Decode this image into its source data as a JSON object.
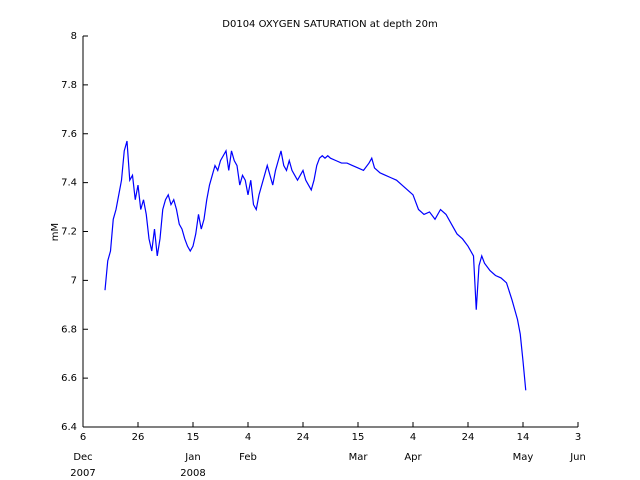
{
  "chart_data": {
    "type": "line",
    "title": "D0104 OXYGEN SATURATION at depth 20m",
    "ylabel": "mM",
    "color": "#0000ff",
    "x": [
      "2007-12-14",
      "2007-12-15",
      "2007-12-16",
      "2007-12-17",
      "2007-12-18",
      "2007-12-19",
      "2007-12-20",
      "2007-12-21",
      "2007-12-22",
      "2007-12-23",
      "2007-12-24",
      "2007-12-25",
      "2007-12-26",
      "2007-12-27",
      "2007-12-28",
      "2007-12-29",
      "2007-12-30",
      "2007-12-31",
      "2008-01-01",
      "2008-01-02",
      "2008-01-03",
      "2008-01-04",
      "2008-01-05",
      "2008-01-06",
      "2008-01-07",
      "2008-01-08",
      "2008-01-09",
      "2008-01-10",
      "2008-01-11",
      "2008-01-12",
      "2008-01-13",
      "2008-01-14",
      "2008-01-15",
      "2008-01-16",
      "2008-01-17",
      "2008-01-18",
      "2008-01-19",
      "2008-01-20",
      "2008-01-21",
      "2008-01-22",
      "2008-01-23",
      "2008-01-24",
      "2008-01-25",
      "2008-01-26",
      "2008-01-27",
      "2008-01-28",
      "2008-01-29",
      "2008-01-30",
      "2008-01-31",
      "2008-02-01",
      "2008-02-02",
      "2008-02-03",
      "2008-02-04",
      "2008-02-05",
      "2008-02-06",
      "2008-02-07",
      "2008-02-08",
      "2008-02-09",
      "2008-02-10",
      "2008-02-11",
      "2008-02-12",
      "2008-02-13",
      "2008-02-14",
      "2008-02-15",
      "2008-02-16",
      "2008-02-17",
      "2008-02-18",
      "2008-02-19",
      "2008-02-20",
      "2008-02-21",
      "2008-02-22",
      "2008-02-23",
      "2008-02-24",
      "2008-02-25",
      "2008-02-26",
      "2008-02-27",
      "2008-02-28",
      "2008-02-29",
      "2008-03-01",
      "2008-03-02",
      "2008-03-03",
      "2008-03-04",
      "2008-03-05",
      "2008-03-07",
      "2008-03-09",
      "2008-03-11",
      "2008-03-13",
      "2008-03-15",
      "2008-03-17",
      "2008-03-19",
      "2008-03-20",
      "2008-03-21",
      "2008-03-23",
      "2008-03-25",
      "2008-03-27",
      "2008-03-29",
      "2008-03-31",
      "2008-04-02",
      "2008-04-04",
      "2008-04-06",
      "2008-04-08",
      "2008-04-10",
      "2008-04-12",
      "2008-04-14",
      "2008-04-16",
      "2008-04-18",
      "2008-04-20",
      "2008-04-22",
      "2008-04-24",
      "2008-04-26",
      "2008-04-27",
      "2008-04-28",
      "2008-04-29",
      "2008-04-30",
      "2008-05-02",
      "2008-05-04",
      "2008-05-06",
      "2008-05-08",
      "2008-05-10",
      "2008-05-12",
      "2008-05-13",
      "2008-05-14",
      "2008-05-15"
    ],
    "values": [
      6.96,
      7.08,
      7.12,
      7.25,
      7.29,
      7.35,
      7.41,
      7.53,
      7.57,
      7.41,
      7.43,
      7.33,
      7.39,
      7.29,
      7.33,
      7.27,
      7.17,
      7.12,
      7.21,
      7.1,
      7.17,
      7.29,
      7.33,
      7.35,
      7.31,
      7.33,
      7.29,
      7.23,
      7.21,
      7.17,
      7.14,
      7.12,
      7.14,
      7.19,
      7.27,
      7.21,
      7.25,
      7.33,
      7.39,
      7.43,
      7.47,
      7.45,
      7.49,
      7.51,
      7.53,
      7.45,
      7.53,
      7.49,
      7.47,
      7.39,
      7.43,
      7.41,
      7.35,
      7.41,
      7.31,
      7.29,
      7.35,
      7.39,
      7.43,
      7.47,
      7.43,
      7.39,
      7.45,
      7.49,
      7.53,
      7.47,
      7.45,
      7.49,
      7.45,
      7.43,
      7.41,
      7.43,
      7.45,
      7.41,
      7.39,
      7.37,
      7.41,
      7.47,
      7.5,
      7.51,
      7.5,
      7.51,
      7.5,
      7.49,
      7.48,
      7.48,
      7.47,
      7.46,
      7.45,
      7.48,
      7.5,
      7.46,
      7.44,
      7.43,
      7.42,
      7.41,
      7.39,
      7.37,
      7.35,
      7.29,
      7.27,
      7.28,
      7.25,
      7.29,
      7.27,
      7.23,
      7.19,
      7.17,
      7.14,
      7.1,
      6.88,
      7.06,
      7.1,
      7.07,
      7.04,
      7.02,
      7.01,
      6.99,
      6.92,
      6.84,
      6.78,
      6.67,
      6.55
    ],
    "xlim": [
      "2007-12-06",
      "2008-06-03"
    ],
    "xticks": [
      {
        "value": "2007-12-06",
        "label": "6"
      },
      {
        "value": "2007-12-26",
        "label": "26"
      },
      {
        "value": "2008-01-15",
        "label": "15"
      },
      {
        "value": "2008-02-04",
        "label": "4"
      },
      {
        "value": "2008-02-24",
        "label": "24"
      },
      {
        "value": "2008-03-15",
        "label": "15"
      },
      {
        "value": "2008-04-04",
        "label": "4"
      },
      {
        "value": "2008-04-24",
        "label": "24"
      },
      {
        "value": "2008-05-14",
        "label": "14"
      },
      {
        "value": "2008-06-03",
        "label": "3"
      }
    ],
    "xtick_months": [
      {
        "value": "2007-12-06",
        "label": "Dec"
      },
      {
        "value": "2008-01-15",
        "label": "Jan"
      },
      {
        "value": "2008-02-04",
        "label": "Feb"
      },
      {
        "value": "2008-03-15",
        "label": "Mar"
      },
      {
        "value": "2008-04-04",
        "label": "Apr"
      },
      {
        "value": "2008-05-14",
        "label": "May"
      },
      {
        "value": "2008-06-03",
        "label": "Jun"
      }
    ],
    "xtick_years": [
      {
        "value": "2007-12-06",
        "label": "2007"
      },
      {
        "value": "2008-01-15",
        "label": "2008"
      }
    ],
    "ylim": [
      6.4,
      8
    ],
    "yticks": [
      6.4,
      6.6,
      6.8,
      7,
      7.2,
      7.4,
      7.6,
      7.8,
      8
    ]
  }
}
